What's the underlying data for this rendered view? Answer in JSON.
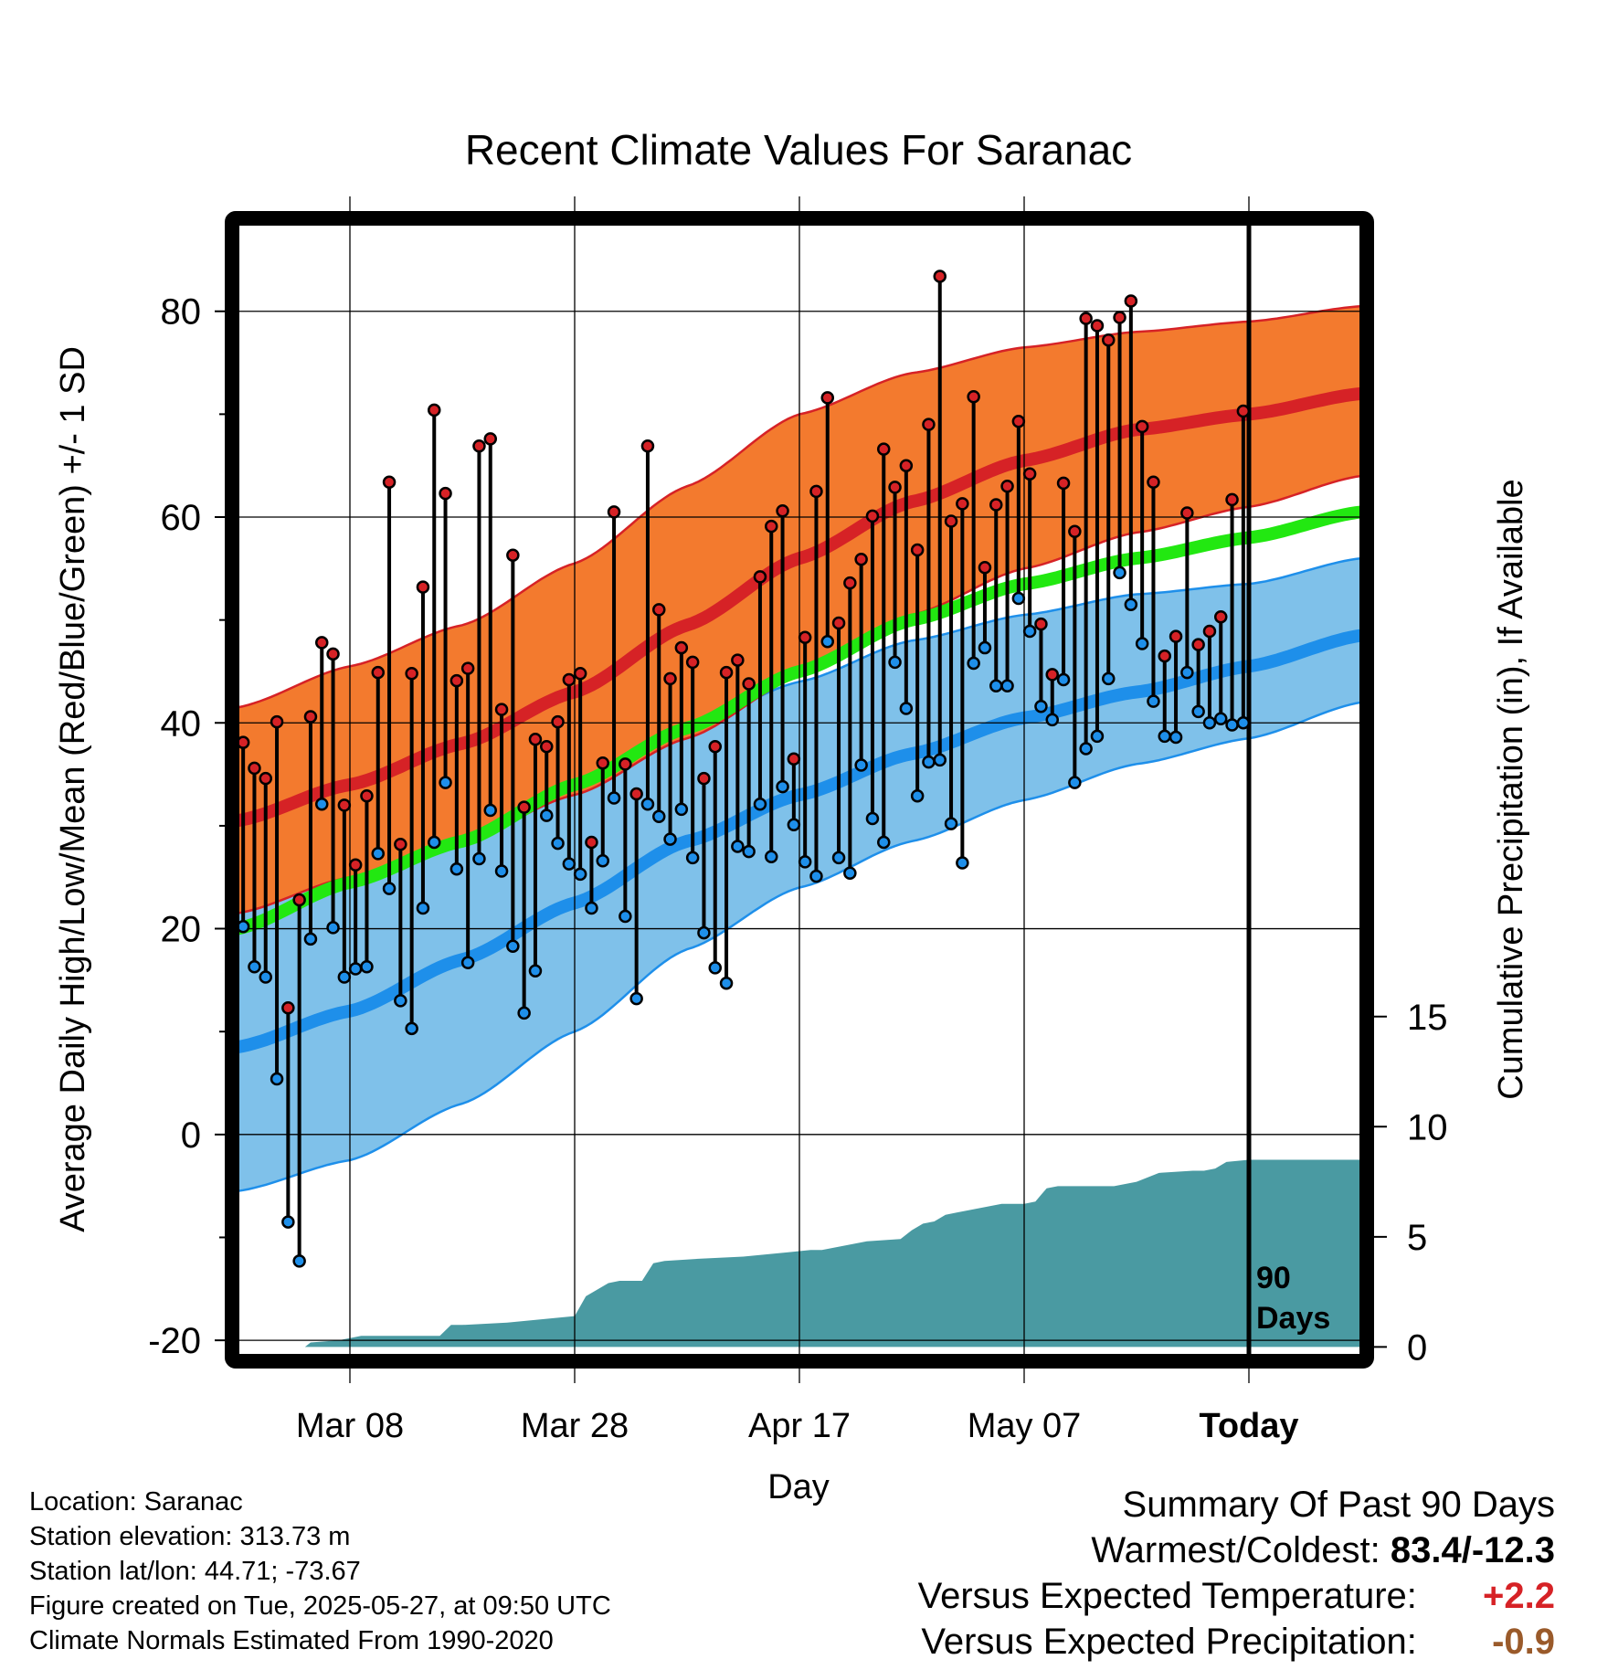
{
  "chart_data": {
    "type": "line",
    "title": "Recent Climate Values For Saranac",
    "xlabel": "Day",
    "ylabel": "Average Daily High/Low/Mean (Red/Blue/Green) +/- 1 SD",
    "ylabel_right": "Cumulative Precipitation (in), If Available",
    "x_ticks": [
      "Mar 08",
      "Mar 28",
      "Apr 17",
      "May 07",
      "Today"
    ],
    "today_label": "90\nDays",
    "ylim": [
      -21.5,
      88.5
    ],
    "yticks": [
      -20,
      0,
      20,
      40,
      60,
      80
    ],
    "y2ticks": [
      0,
      5,
      10,
      15
    ],
    "y2lim": [
      -0.4,
      51
    ],
    "x_range_days": [
      0,
      100
    ],
    "today_day": 90,
    "grid": true,
    "colors": {
      "high_band": "#F37A2E",
      "high_line": "#D62226",
      "low_band": "#7FC1EA",
      "low_line": "#1E8FEA",
      "mean_line": "#22E811",
      "precip": "#4A9AA2",
      "high_dot": "#D62226",
      "low_dot": "#1E8FEA"
    },
    "normals": {
      "day": [
        0,
        10,
        20,
        30,
        40,
        50,
        60,
        70,
        80,
        90,
        100
      ],
      "high_mean": [
        30.5,
        34.0,
        38.0,
        43.0,
        49.5,
        56.0,
        61.5,
        65.5,
        68.5,
        70.0,
        72.0
      ],
      "high_upper": [
        41.5,
        45.5,
        49.5,
        55.5,
        63.0,
        70.0,
        74.0,
        76.5,
        78.0,
        79.0,
        80.5
      ],
      "high_lower": [
        21.5,
        25.0,
        28.5,
        33.0,
        38.5,
        44.5,
        50.5,
        55.0,
        58.5,
        61.0,
        64.0
      ],
      "mean": [
        20.0,
        24.5,
        28.5,
        34.0,
        39.5,
        45.0,
        50.0,
        53.5,
        56.0,
        58.0,
        60.5
      ],
      "low_mean": [
        8.5,
        12.0,
        17.0,
        22.5,
        28.5,
        33.0,
        37.0,
        40.5,
        43.0,
        45.5,
        48.5
      ],
      "low_upper": [
        22.5,
        26.0,
        29.5,
        34.5,
        39.5,
        44.0,
        48.0,
        50.5,
        52.5,
        53.5,
        56.0
      ],
      "low_lower": [
        -5.5,
        -2.5,
        3.0,
        10.0,
        18.0,
        24.0,
        28.5,
        32.5,
        36.0,
        38.5,
        42.0
      ]
    },
    "daily_high": [
      38.1,
      35.6,
      34.6,
      40.1,
      12.3,
      22.8,
      40.6,
      47.8,
      46.7,
      32.0,
      26.2,
      32.9,
      44.9,
      63.4,
      28.2,
      44.8,
      53.2,
      70.4,
      62.3,
      44.1,
      45.3,
      66.9,
      67.6,
      41.3,
      56.3,
      31.8,
      38.4,
      37.7,
      40.1,
      44.2,
      44.8,
      28.4,
      36.1,
      60.5,
      36.0,
      33.1,
      66.9,
      51.0,
      44.3,
      47.3,
      45.9,
      34.6,
      37.7,
      44.9,
      46.1,
      43.8,
      54.2,
      59.1,
      60.6,
      36.5,
      48.3,
      62.5,
      71.6,
      49.7,
      53.6,
      55.9,
      60.1,
      66.6,
      62.9,
      65.0,
      56.8,
      69.0,
      83.4,
      59.6,
      61.3,
      71.7,
      55.1,
      61.2,
      63.0,
      69.3,
      64.2,
      49.6,
      44.7,
      63.3,
      58.6,
      79.3,
      78.6,
      77.2,
      79.4,
      81.0,
      68.8,
      63.4,
      46.5,
      48.4,
      60.4,
      47.6,
      48.9,
      50.3,
      61.7,
      70.3
    ],
    "daily_low": [
      20.2,
      16.3,
      15.3,
      5.4,
      -8.5,
      -12.3,
      19.0,
      32.1,
      20.1,
      15.3,
      16.1,
      16.3,
      27.3,
      23.9,
      13.0,
      10.3,
      22.0,
      28.4,
      34.2,
      25.8,
      16.7,
      26.8,
      31.5,
      25.6,
      18.3,
      11.8,
      15.9,
      31.0,
      28.3,
      26.3,
      25.3,
      22.0,
      26.6,
      32.7,
      21.2,
      13.2,
      32.1,
      30.9,
      28.7,
      31.6,
      26.9,
      19.6,
      16.2,
      14.7,
      28.0,
      27.5,
      32.1,
      27.0,
      33.8,
      30.1,
      26.5,
      25.1,
      47.9,
      26.9,
      25.4,
      35.9,
      30.7,
      28.4,
      45.9,
      41.4,
      32.9,
      36.2,
      36.4,
      30.2,
      26.4,
      45.8,
      47.3,
      43.6,
      43.6,
      52.1,
      48.9,
      41.6,
      40.3,
      44.2,
      34.2,
      37.5,
      38.7,
      44.3,
      54.6,
      51.5,
      47.7,
      42.1,
      38.7,
      38.6,
      44.9,
      41.1,
      40.0,
      40.4,
      39.8,
      40.0
    ],
    "precip_cumulative": {
      "day": [
        0,
        6,
        6.5,
        9,
        11,
        18,
        19,
        20,
        24,
        26,
        30,
        31,
        33,
        34,
        36,
        37,
        38,
        41,
        45,
        49,
        51,
        52,
        56,
        59,
        60,
        61,
        62,
        63,
        64,
        65,
        66,
        68,
        70,
        71,
        71.5,
        72,
        73,
        74,
        78,
        79,
        80,
        82,
        85,
        86,
        87,
        88,
        90,
        100
      ],
      "value": [
        0,
        0,
        0.2,
        0.3,
        0.5,
        0.5,
        1.0,
        1.0,
        1.1,
        1.2,
        1.4,
        2.3,
        2.9,
        3.0,
        3.0,
        3.8,
        3.9,
        4.0,
        4.1,
        4.3,
        4.4,
        4.4,
        4.8,
        4.9,
        5.3,
        5.6,
        5.7,
        6.0,
        6.1,
        6.2,
        6.3,
        6.5,
        6.5,
        6.6,
        6.9,
        7.2,
        7.3,
        7.3,
        7.3,
        7.4,
        7.5,
        7.9,
        8.0,
        8.0,
        8.1,
        8.4,
        8.5,
        8.5
      ]
    }
  },
  "meta": {
    "location": "Location: Saranac",
    "elevation": "Station elevation: 313.73 m",
    "latlon": "Station lat/lon: 44.71; -73.67",
    "created": "Figure created on Tue, 2025-05-27, at 09:50 UTC",
    "normals": "Climate Normals Estimated From 1990-2020"
  },
  "summary": {
    "heading": "Summary Of Past 90 Days",
    "warmest_label": "Warmest/Coldest:",
    "warmest_value": "83.4/-12.3",
    "temp_label": "Versus Expected Temperature:",
    "temp_value": "+2.2",
    "temp_color": "#D62226",
    "precip_label": "Versus Expected Precipitation:",
    "precip_value": "-0.9",
    "precip_color": "#9A5A2A"
  }
}
